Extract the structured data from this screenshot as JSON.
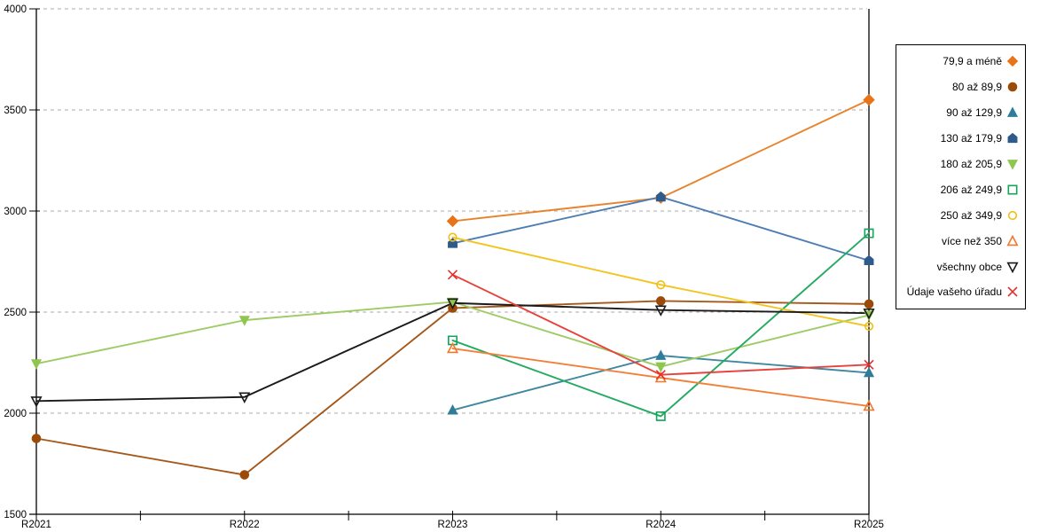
{
  "chart_data": {
    "type": "line",
    "title": "",
    "xlabel": "",
    "ylabel": "",
    "categories": [
      "R2021",
      "R2022",
      "R2023",
      "R2024",
      "R2025"
    ],
    "ylim": [
      1500,
      4000
    ],
    "y_ticks": [
      1500,
      2000,
      2500,
      3000,
      3500,
      4000
    ],
    "grid": "horizontal-dashed",
    "grid_color": "#ABABAB",
    "axis_color": "#000000",
    "legend_position": "right-outside-box",
    "series": [
      {
        "name": "79,9 a méně",
        "marker": "diamond",
        "style": "filled",
        "color": "#E87318",
        "line_color": "#E8832C",
        "values": [
          null,
          null,
          2950,
          3065,
          3550
        ]
      },
      {
        "name": "80 až 89,9",
        "marker": "circle",
        "style": "filled",
        "color": "#9C4A08",
        "line_color": "#A4591B",
        "values": [
          1875,
          1695,
          2520,
          2555,
          2540
        ]
      },
      {
        "name": "90 až 129,9",
        "marker": "triangle-up",
        "style": "filled",
        "color": "#2F7D99",
        "line_color": "#3E88A0",
        "values": [
          null,
          null,
          2015,
          2285,
          2200
        ]
      },
      {
        "name": "130 až 179,9",
        "marker": "pentagon",
        "style": "filled",
        "color": "#2E5A8C",
        "line_color": "#4D7DB2",
        "values": [
          null,
          null,
          2840,
          3070,
          2755
        ]
      },
      {
        "name": "180 až 205,9",
        "marker": "triangle-down",
        "style": "filled",
        "color": "#8FC64E",
        "line_color": "#9DCB64",
        "values": [
          2245,
          2460,
          2550,
          2230,
          2485
        ]
      },
      {
        "name": "206 až 249,9",
        "marker": "square",
        "style": "open",
        "color": "#12A45A",
        "line_color": "#25AB62",
        "values": [
          null,
          null,
          2360,
          1985,
          2890
        ]
      },
      {
        "name": "250 až 349,9",
        "marker": "circle",
        "style": "open",
        "color": "#F1BE18",
        "line_color": "#F4C41E",
        "values": [
          null,
          null,
          2870,
          2635,
          2430
        ]
      },
      {
        "name": "více než 350",
        "marker": "triangle-up",
        "style": "open",
        "color": "#F1772B",
        "line_color": "#F3803A",
        "values": [
          null,
          null,
          2320,
          2175,
          2035
        ]
      },
      {
        "name": "všechny obce",
        "marker": "triangle-down",
        "style": "open",
        "color": "#1A1A1A",
        "line_color": "#1A1A1A",
        "values": [
          2060,
          2080,
          2545,
          2510,
          2495
        ]
      },
      {
        "name": "Údaje vašeho úřadu",
        "marker": "x",
        "style": "open",
        "color": "#E23030",
        "line_color": "#E8403A",
        "values": [
          null,
          null,
          2685,
          2190,
          2240
        ]
      }
    ]
  }
}
